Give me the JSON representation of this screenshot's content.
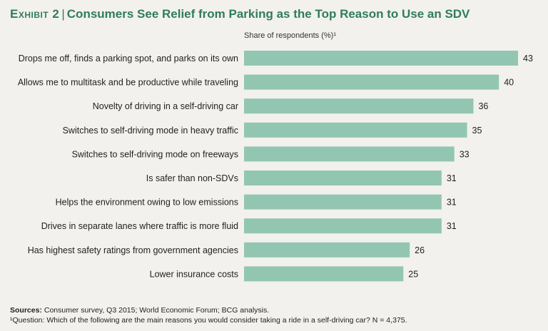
{
  "header": {
    "exhibit": "Exhibit 2",
    "separator": "|",
    "title": "Consumers See Relief from Parking as the Top Reason to Use an SDV"
  },
  "chart_data": {
    "type": "bar",
    "orientation": "horizontal",
    "title": "Consumers See Relief from Parking as the Top Reason to Use an SDV",
    "xlabel": "Share of respondents (%)¹",
    "ylabel": "",
    "xlim": [
      0,
      43
    ],
    "grid": false,
    "bar_color": "#93c6b2",
    "categories": [
      "Drops me off, finds a parking spot, and parks on its own",
      "Allows me to multitask and be productive while traveling",
      "Novelty of driving in a self-driving car",
      "Switches to self-driving mode in heavy traffic",
      "Switches to self-driving mode on freeways",
      "Is safer than non-SDVs",
      "Helps the environment owing to low emissions",
      "Drives in separate lanes where traffic is more fluid",
      "Has highest safety ratings from government agencies",
      "Lower insurance costs"
    ],
    "values": [
      43,
      40,
      36,
      35,
      33,
      31,
      31,
      31,
      26,
      25
    ]
  },
  "footer": {
    "sources_label": "Sources:",
    "sources_text": " Consumer survey, Q3 2015; World Economic Forum; BCG analysis.",
    "footnote": "¹Question: Which of the following are the main reasons you would consider taking a ride in a self-driving car? N = 4,375."
  },
  "colors": {
    "title": "#2f7d5b",
    "background": "#f2f1ed",
    "bar": "#93c6b2"
  }
}
